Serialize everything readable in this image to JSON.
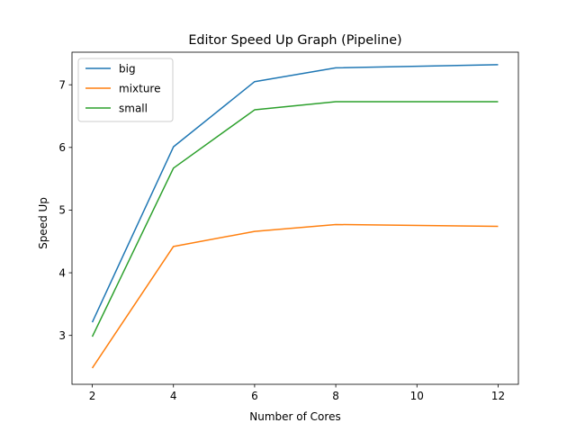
{
  "chart_data": {
    "type": "line",
    "title": "Editor Speed Up Graph (Pipeline)",
    "xlabel": "Number of Cores",
    "ylabel": "Speed Up",
    "x": [
      2,
      4,
      6,
      8,
      12
    ],
    "xlim": [
      1.5,
      12.5
    ],
    "ylim": [
      2.22,
      7.52
    ],
    "xticks": [
      2,
      4,
      6,
      8,
      10,
      12
    ],
    "yticks": [
      3,
      4,
      5,
      6,
      7
    ],
    "grid": false,
    "legend_position": "top-left",
    "series": [
      {
        "name": "big",
        "color": "#1f77b4",
        "values": [
          3.21,
          6.01,
          7.05,
          7.27,
          7.32
        ]
      },
      {
        "name": "mixture",
        "color": "#ff7f0e",
        "values": [
          2.48,
          4.42,
          4.66,
          4.77,
          4.74
        ]
      },
      {
        "name": "small",
        "color": "#2ca02c",
        "values": [
          2.98,
          5.67,
          6.6,
          6.73,
          6.73
        ]
      }
    ]
  }
}
